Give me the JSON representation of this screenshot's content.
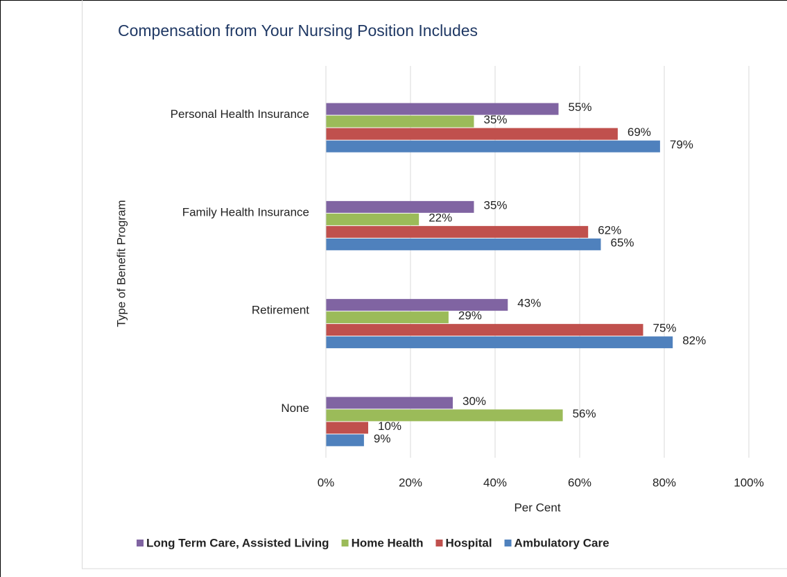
{
  "chart_data": {
    "type": "bar",
    "orientation": "horizontal",
    "title": "Compensation from Your Nursing Position Includes",
    "x_label": "Per Cent",
    "y_label": "Type of Benefit Program",
    "categories": [
      "Personal Health Insurance",
      "Family Health Insurance",
      "Retirement",
      "None"
    ],
    "series": [
      {
        "name": "Long Term Care, Assisted Living",
        "color": "#8064a2",
        "values": [
          55,
          35,
          43,
          30
        ],
        "value_labels": [
          "55%",
          "35%",
          "43%",
          "30%"
        ]
      },
      {
        "name": "Home Health",
        "color": "#9bbb59",
        "values": [
          35,
          22,
          29,
          56
        ],
        "value_labels": [
          "35%",
          "22%",
          "29%",
          "56%"
        ]
      },
      {
        "name": "Hospital",
        "color": "#c0504d",
        "values": [
          69,
          62,
          75,
          10
        ],
        "value_labels": [
          "69%",
          "62%",
          "75%",
          "10%"
        ]
      },
      {
        "name": "Ambulatory Care",
        "color": "#4f81bd",
        "values": [
          79,
          65,
          82,
          9
        ],
        "value_labels": [
          "79%",
          "65%",
          "82%",
          "9%"
        ]
      }
    ],
    "xlim": [
      0,
      100
    ],
    "xticks": [
      {
        "value": 0,
        "label": "0%"
      },
      {
        "value": 20,
        "label": "20%"
      },
      {
        "value": 40,
        "label": "40%"
      },
      {
        "value": 60,
        "label": "60%"
      },
      {
        "value": 80,
        "label": "80%"
      },
      {
        "value": 100,
        "label": "100%"
      }
    ],
    "grid": true,
    "legend": "bottom"
  }
}
